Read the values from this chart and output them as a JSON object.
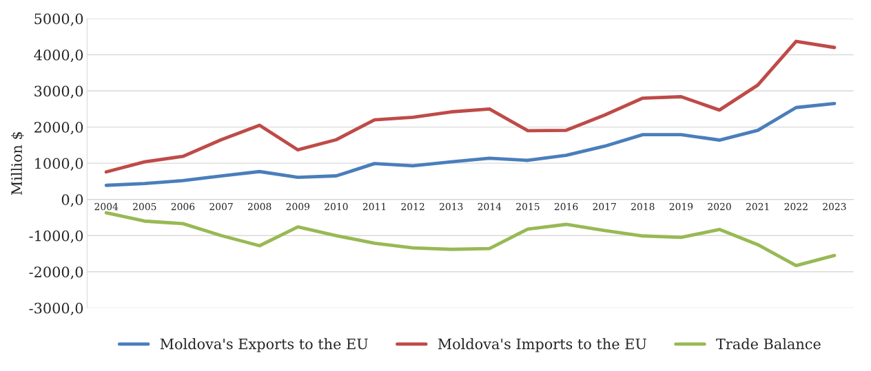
{
  "chart_data": {
    "type": "line",
    "ylabel": "Million $",
    "categories": [
      "2004",
      "2005",
      "2006",
      "2007",
      "2008",
      "2009",
      "2010",
      "2011",
      "2012",
      "2013",
      "2014",
      "2015",
      "2016",
      "2017",
      "2018",
      "2019",
      "2020",
      "2021",
      "2022",
      "2023"
    ],
    "series": [
      {
        "name": "Moldova's Exports to the EU",
        "color": "#4a7ebb",
        "values": [
          390,
          440,
          520,
          650,
          770,
          610,
          650,
          990,
          930,
          1040,
          1140,
          1080,
          1220,
          1470,
          1790,
          1790,
          1640,
          1910,
          2540,
          2650
        ]
      },
      {
        "name": "Moldova's Imports to the EU",
        "color": "#be4b48",
        "values": [
          760,
          1040,
          1190,
          1650,
          2050,
          1370,
          1650,
          2200,
          2270,
          2420,
          2500,
          1900,
          1910,
          2330,
          2800,
          2840,
          2470,
          3160,
          4370,
          4200
        ]
      },
      {
        "name": "Trade Balance",
        "color": "#98b954",
        "values": [
          -370,
          -600,
          -670,
          -1000,
          -1280,
          -760,
          -1000,
          -1210,
          -1340,
          -1380,
          -1360,
          -820,
          -690,
          -860,
          -1010,
          -1050,
          -830,
          -1250,
          -1830,
          -1550
        ]
      }
    ],
    "ylim": [
      -3000,
      5000
    ],
    "yticks": [
      {
        "value": -3000,
        "label": "-3000,0"
      },
      {
        "value": -2000,
        "label": "-2000,0"
      },
      {
        "value": -1000,
        "label": "-1000,0"
      },
      {
        "value": 0,
        "label": "0,0"
      },
      {
        "value": 1000,
        "label": "1000,0"
      },
      {
        "value": 2000,
        "label": "2000,0"
      },
      {
        "value": 3000,
        "label": "3000,0"
      },
      {
        "value": 4000,
        "label": "4000,0"
      },
      {
        "value": 5000,
        "label": "5000,0"
      }
    ],
    "grid": "y",
    "legend": "bottom",
    "marker": "none",
    "line_style": "solid"
  }
}
